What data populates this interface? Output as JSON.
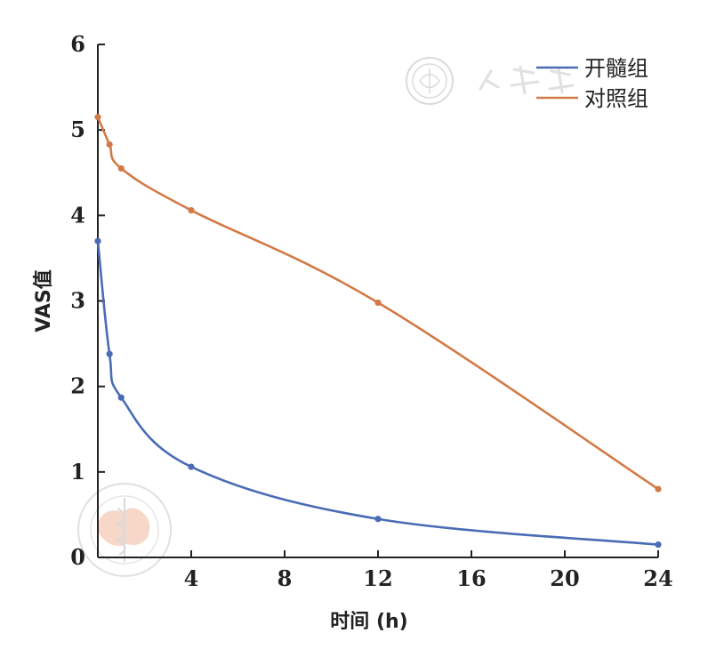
{
  "chart_data": {
    "type": "line",
    "title": "",
    "xlabel": "时间 (h)",
    "ylabel": "VAS值",
    "xlim": [
      0,
      24
    ],
    "ylim": [
      0,
      6
    ],
    "x_ticks": [
      {
        "value": 4,
        "label": "4"
      },
      {
        "value": 8,
        "label": "8"
      },
      {
        "value": 12,
        "label": "12"
      },
      {
        "value": 16,
        "label": "16"
      },
      {
        "value": 20,
        "label": "20"
      },
      {
        "value": 24,
        "label": "24"
      }
    ],
    "y_ticks": [
      {
        "value": 0,
        "label": "0"
      },
      {
        "value": 1,
        "label": "1"
      },
      {
        "value": 2,
        "label": "2"
      },
      {
        "value": 3,
        "label": "3"
      },
      {
        "value": 4,
        "label": "4"
      },
      {
        "value": 5,
        "label": "5"
      },
      {
        "value": 6,
        "label": "6"
      }
    ],
    "grid": false,
    "legend_position": "top-right",
    "series": [
      {
        "name": "开髓组",
        "color": "#4a6cb5",
        "x": [
          0,
          0.5,
          1,
          4,
          12,
          24
        ],
        "y": [
          3.7,
          2.38,
          1.87,
          1.06,
          0.45,
          0.15
        ]
      },
      {
        "name": "对照组",
        "color": "#d27a47",
        "x": [
          0,
          0.5,
          1,
          4,
          12,
          24
        ],
        "y": [
          5.15,
          4.83,
          4.55,
          4.06,
          2.98,
          0.8
        ]
      }
    ]
  }
}
